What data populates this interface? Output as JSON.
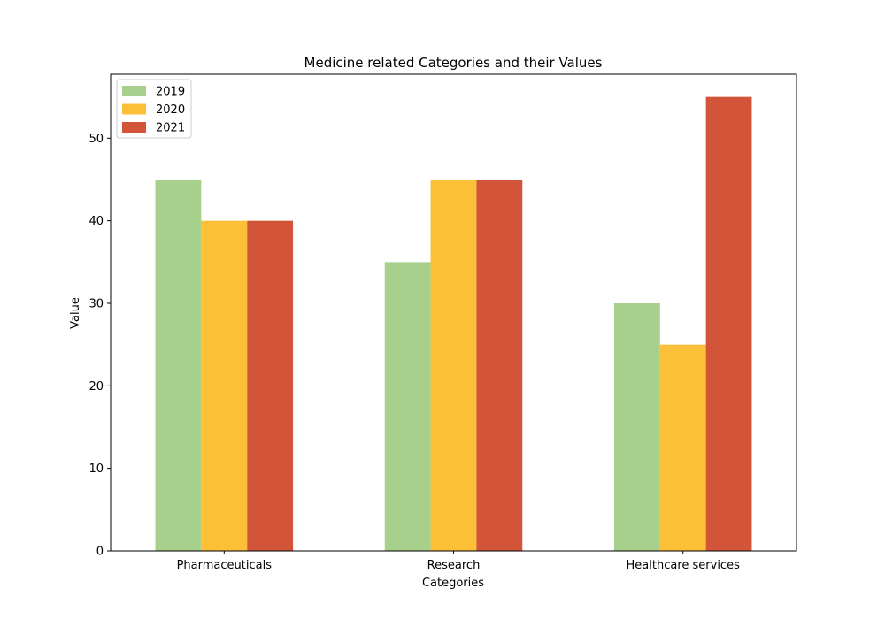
{
  "chart_data": {
    "type": "bar",
    "title": "Medicine related Categories and their Values",
    "xlabel": "Categories",
    "ylabel": "Value",
    "categories": [
      "Pharmaceuticals",
      "Research",
      "Healthcare services"
    ],
    "series": [
      {
        "name": "2019",
        "values": [
          45,
          35,
          30
        ],
        "color": "#a8d08d"
      },
      {
        "name": "2020",
        "values": [
          40,
          45,
          25
        ],
        "color": "#fbc038"
      },
      {
        "name": "2021",
        "values": [
          40,
          45,
          55
        ],
        "color": "#d2553a"
      }
    ],
    "ylim": [
      0,
      57.75
    ],
    "yticks": [
      0,
      10,
      20,
      30,
      40,
      50
    ],
    "grid": false,
    "legend_position": "top-left"
  }
}
